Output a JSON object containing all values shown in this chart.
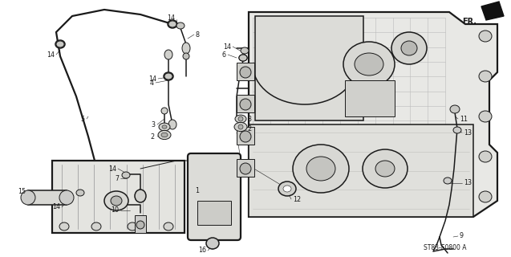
{
  "bg_color": "#f5f5f0",
  "line_color": "#1a1a1a",
  "diagram_ref": "ST83-E0800 A",
  "fr_label": "FR.",
  "figsize": [
    6.37,
    3.2
  ],
  "dpi": 100,
  "label_fontsize": 5.8,
  "ref_fontsize": 5.5,
  "fr_fontsize": 7.0
}
